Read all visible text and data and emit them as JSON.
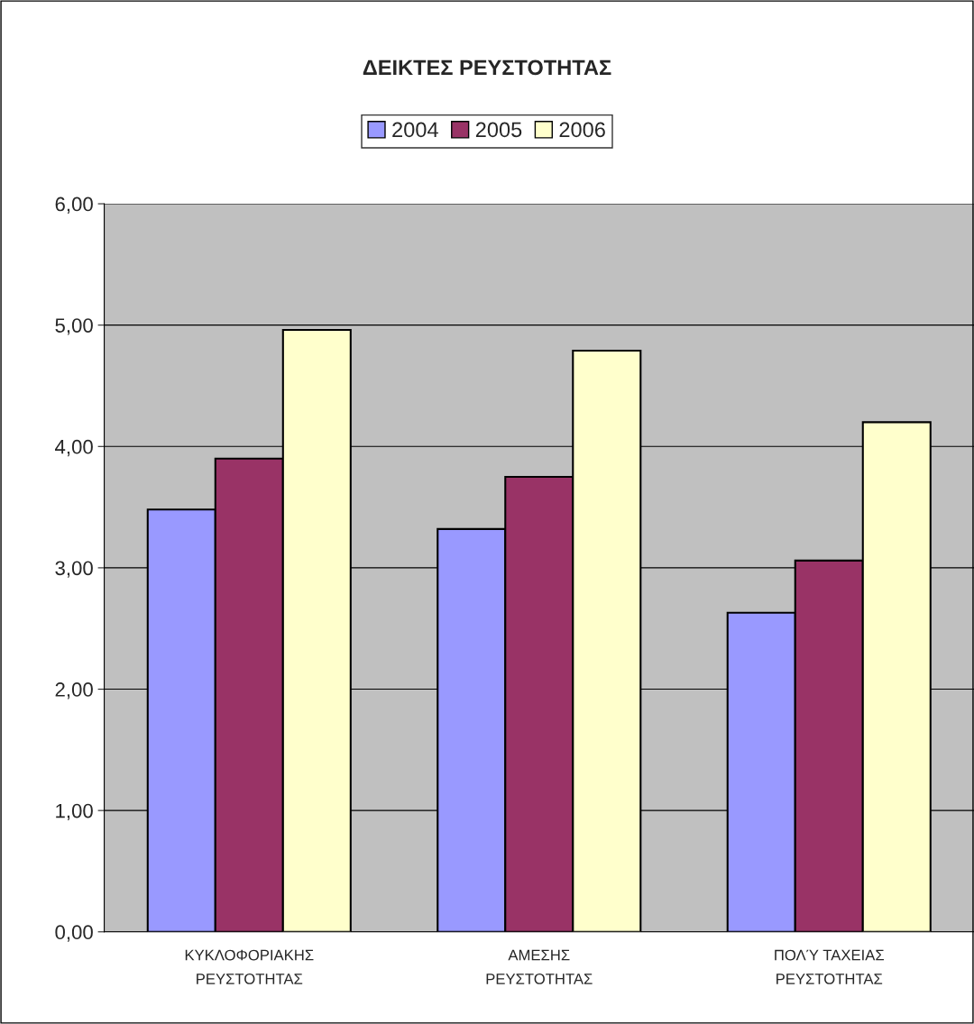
{
  "chart_data": {
    "type": "bar",
    "title": "ΔΕΙΚΤΕΣ ΡΕΥΣΤΟΤΗΤΑΣ",
    "categories": [
      "ΚΥΚΛΟΦΟΡΙΑΚΗΣ\nΡΕΥΣΤΟΤΗΤΑΣ",
      "ΑΜΕΣΗΣ\nΡΕΥΣΤΟΤΗΤΑΣ",
      "ΠΟΛΎ ΤΑΧΕΙΑΣ\nΡΕΥΣΤΟΤΗΤΑΣ"
    ],
    "series": [
      {
        "name": "2004",
        "color": "#9999ff",
        "values": [
          3.48,
          3.32,
          2.63
        ]
      },
      {
        "name": "2005",
        "color": "#993366",
        "values": [
          3.9,
          3.75,
          3.06
        ]
      },
      {
        "name": "2006",
        "color": "#ffffcc",
        "values": [
          4.96,
          4.79,
          4.2
        ]
      }
    ],
    "ylim": [
      0,
      6
    ],
    "yticks": [
      {
        "value": 0,
        "label": "0,00"
      },
      {
        "value": 1,
        "label": "1,00"
      },
      {
        "value": 2,
        "label": "2,00"
      },
      {
        "value": 3,
        "label": "3,00"
      },
      {
        "value": 4,
        "label": "4,00"
      },
      {
        "value": 5,
        "label": "5,00"
      },
      {
        "value": 6,
        "label": "6,00"
      }
    ],
    "grid": "y",
    "legend": "top"
  }
}
